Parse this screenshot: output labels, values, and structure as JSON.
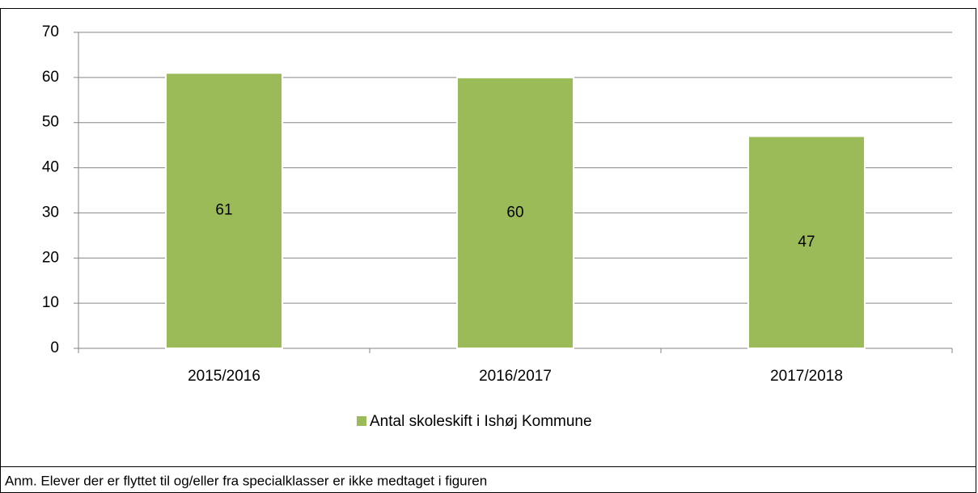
{
  "chart_data": {
    "type": "bar",
    "categories": [
      "2015/2016",
      "2016/2017",
      "2017/2018"
    ],
    "series": [
      {
        "name": "Antal skoleskift i Ishøj Kommune",
        "color": "#9bbb59",
        "values": [
          61,
          60,
          47
        ]
      }
    ],
    "ylim": [
      0,
      70
    ],
    "yticks": [
      0,
      10,
      20,
      30,
      40,
      50,
      60,
      70
    ],
    "grid": true,
    "legend": "bottom",
    "note": "Anm. Elever der er flyttet til og/eller fra specialklasser er ikke medtaget i figuren"
  }
}
